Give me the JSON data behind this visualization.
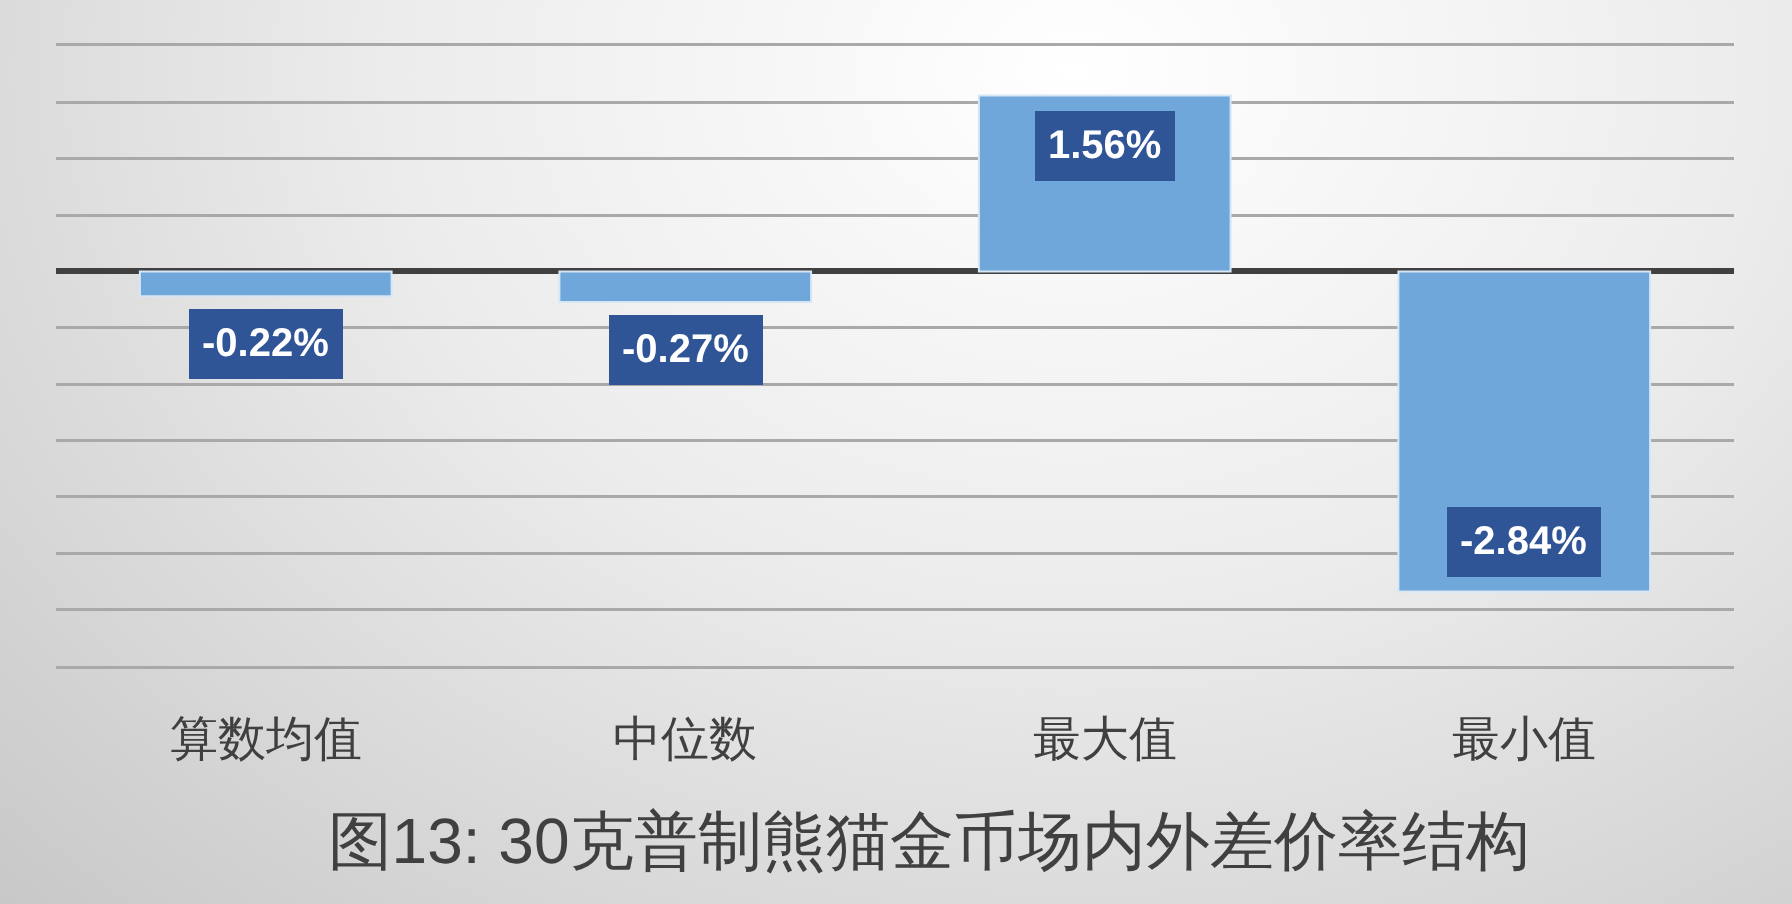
{
  "chart_data": {
    "type": "bar",
    "title": "图13: 30克普制熊猫金币场内外差价率结构",
    "categories": [
      "算数均值",
      "中位数",
      "最大值",
      "最小值"
    ],
    "values": [
      -0.22,
      -0.27,
      1.56,
      -2.84
    ],
    "value_labels": [
      "-0.22%",
      "-0.27%",
      "1.56%",
      "-2.84%"
    ],
    "color": "#70a7da",
    "ylim": [
      -3.5,
      2.0
    ],
    "yticks": [
      {
        "value": -3.5,
        "label": null
      },
      {
        "value": -3.0,
        "label": null
      },
      {
        "value": -2.5,
        "label": null
      },
      {
        "value": -2.0,
        "label": null
      },
      {
        "value": -1.5,
        "label": null
      },
      {
        "value": -1.0,
        "label": null
      },
      {
        "value": -0.5,
        "label": null
      },
      {
        "value": 0,
        "label": null
      },
      {
        "value": 0.5,
        "label": null
      },
      {
        "value": 1.0,
        "label": null
      },
      {
        "value": 1.5,
        "label": null
      },
      {
        "value": 2.0,
        "label": null
      }
    ],
    "grid": "y",
    "tick_labels": "x"
  }
}
